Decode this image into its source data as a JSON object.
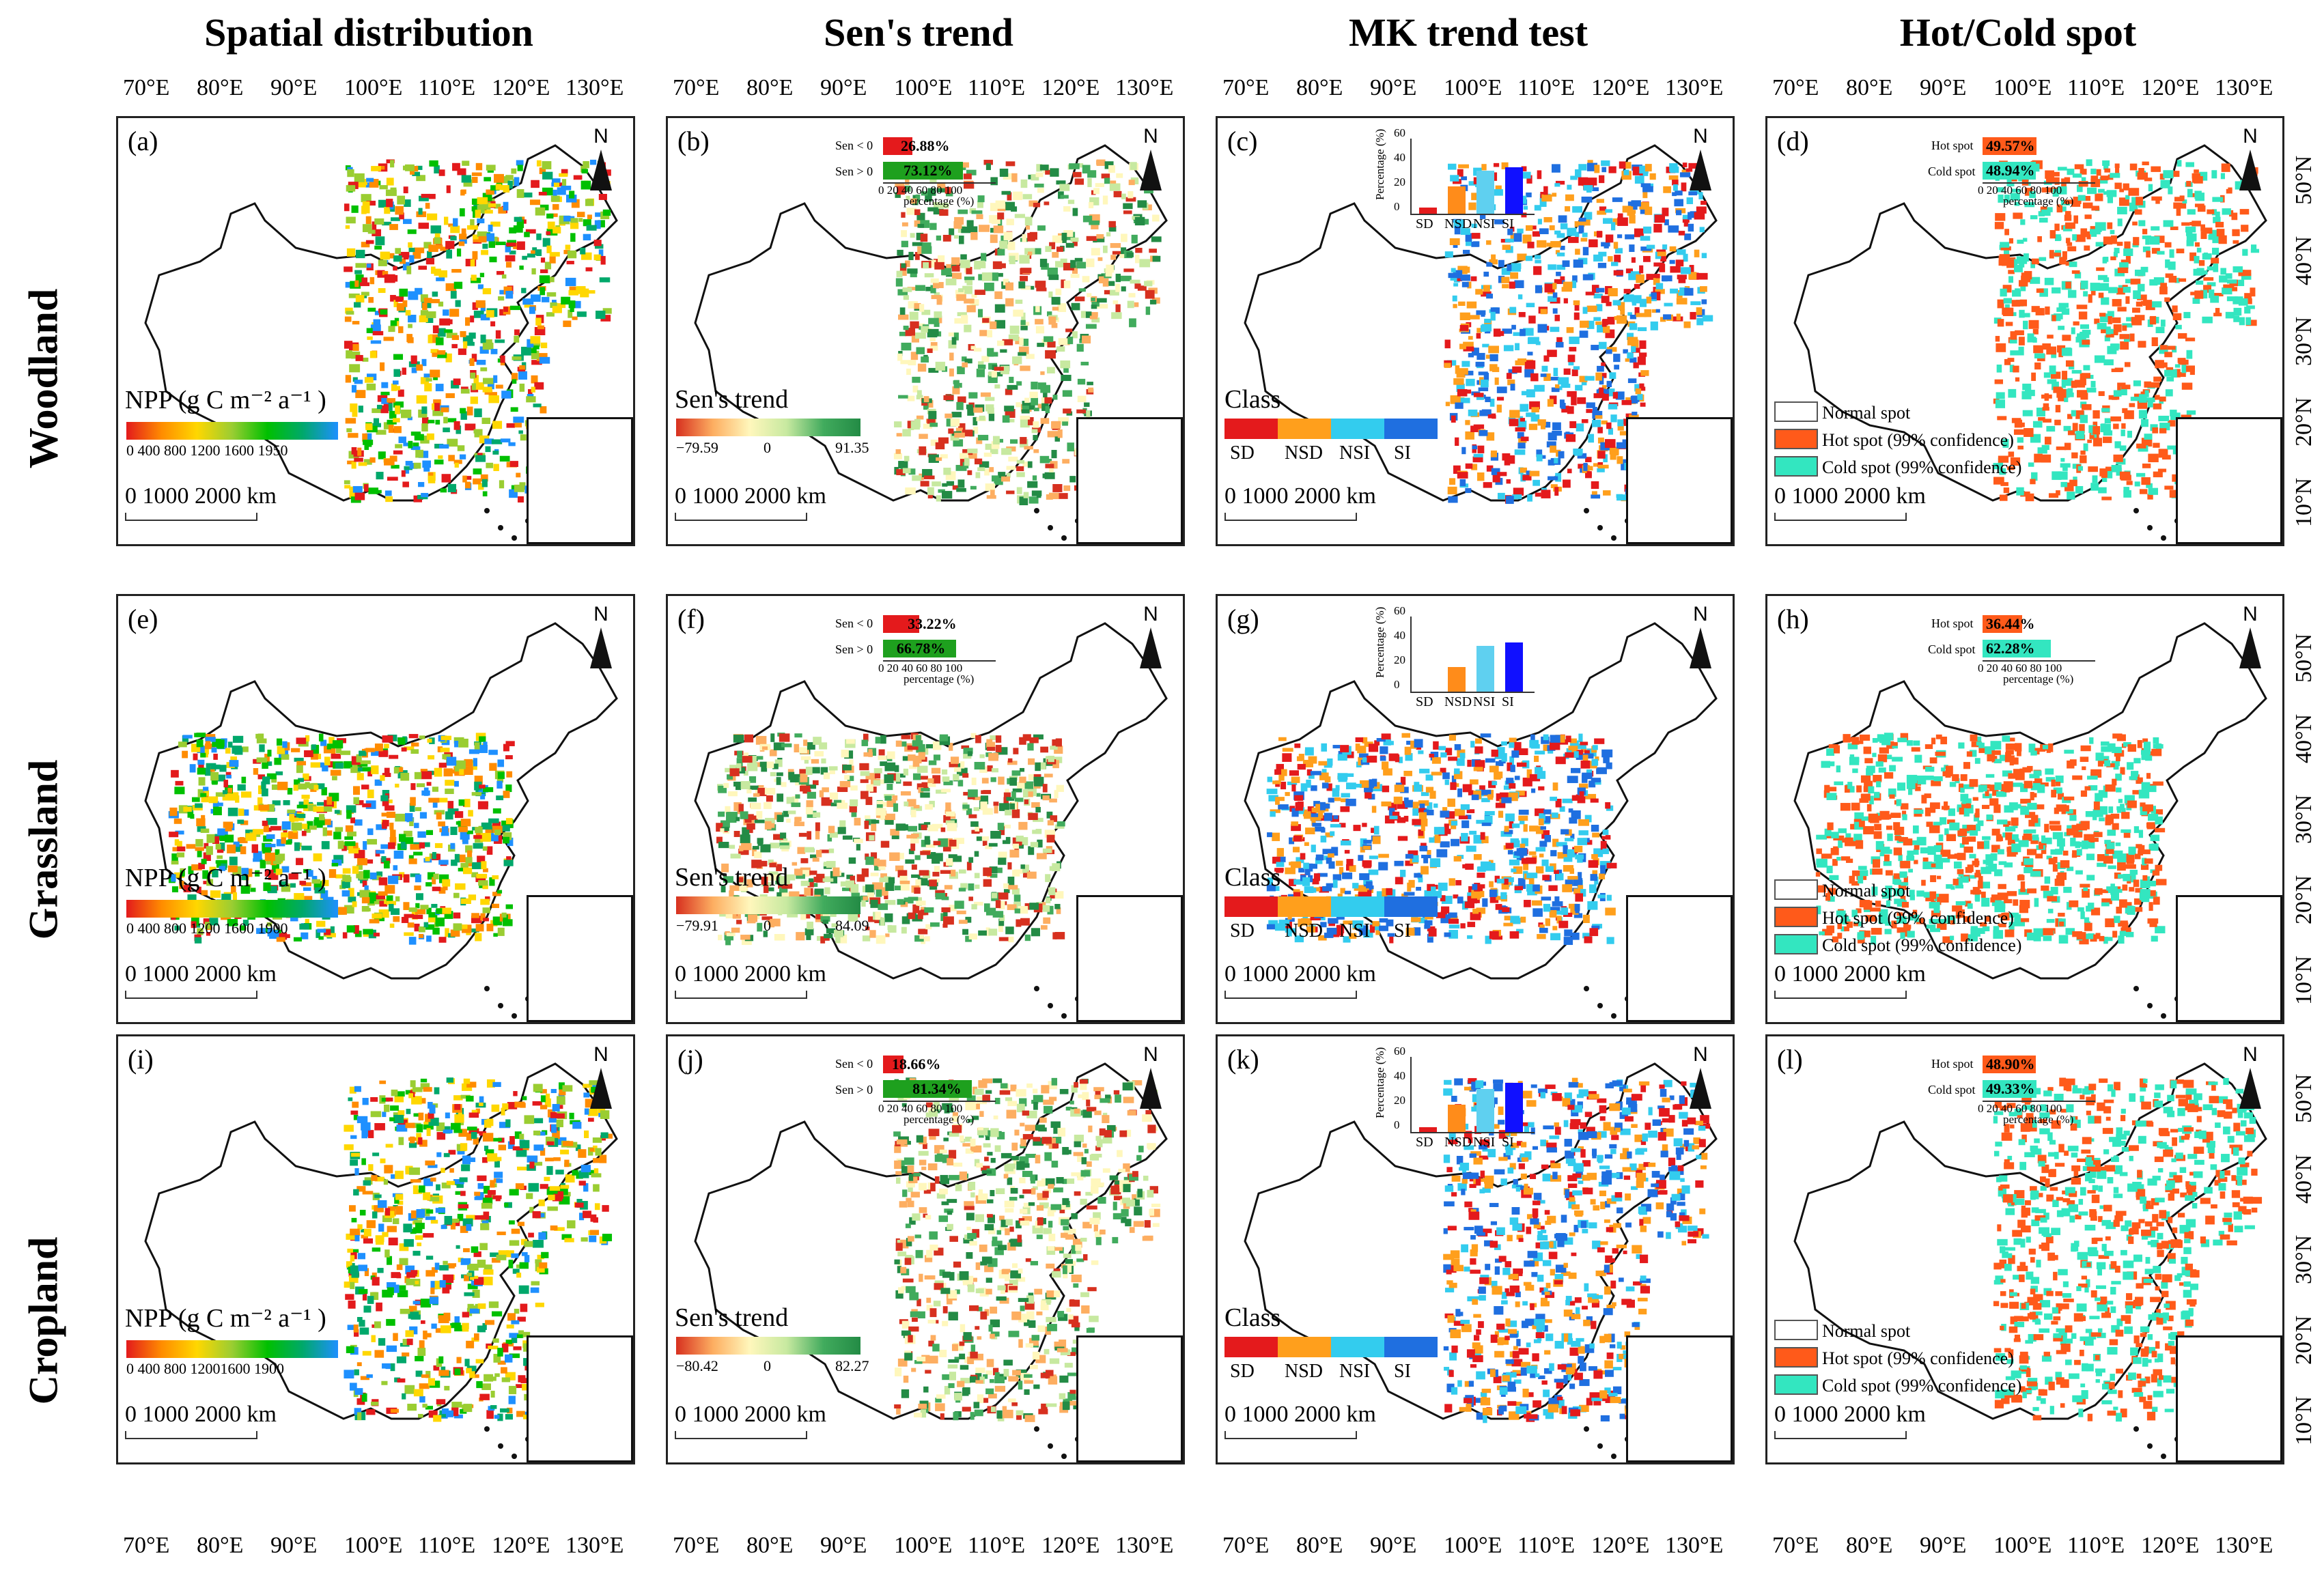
{
  "columns": [
    "Spatial distribution",
    "Sen's trend",
    "MK trend test",
    "Hot/Cold spot"
  ],
  "rows": [
    "Woodland",
    "Grassland",
    "Cropland"
  ],
  "lon_ticks": [
    "70°E",
    "80°E",
    "90°E",
    "100°E",
    "110°E",
    "120°E",
    "130°E"
  ],
  "lat_ticks": [
    "50°N",
    "40°N",
    "30°N",
    "20°N",
    "10°N"
  ],
  "north_label": "N",
  "scale": {
    "zero": "0",
    "mid": "1000",
    "end": "2000",
    "unit": "km"
  },
  "npp_title": "NPP (g C m⁻² a⁻¹ )",
  "sens_title": "Sen's trend",
  "class_title": "Class",
  "class_labels": [
    "SD",
    "NSD",
    "NSI",
    "SI"
  ],
  "hc_legend": [
    "Normal spot",
    "Hot spot (99% confidence)",
    "Cold spot (99% confidence)"
  ],
  "mini_axis": {
    "x_ticks": "0  20 40 60 80 100",
    "x_label": "percentage (%)",
    "y_label": "Percentage (%)",
    "y_ticks": [
      "60",
      "40",
      "20",
      "0"
    ],
    "sen_neg": "Sen < 0",
    "sen_pos": "Sen > 0",
    "hot": "Hot spot",
    "cold": "Cold spot"
  },
  "colors": {
    "npp": [
      "#e31a1c",
      "#ff8c00",
      "#ffd700",
      "#9acd32",
      "#00c000",
      "#00a86b",
      "#1e90ff"
    ],
    "sens": [
      "#d7301f",
      "#fdae61",
      "#fff7bc",
      "#c7e9a0",
      "#41ab5d",
      "#238b45"
    ],
    "class": [
      "#e41a1c",
      "#ff9f1c",
      "#33ccee",
      "#1f6fe0"
    ],
    "hot": "#ff5a1a",
    "cold": "#33e6c0",
    "mk_bars": [
      "#e41a1c",
      "#ff8c1a",
      "#5fd0f0",
      "#1010ff"
    ],
    "sen_neg_bar": "#e41a1c",
    "sen_pos_bar": "#1ea01e"
  },
  "panels": [
    {
      "label": "(a)",
      "type": "npp",
      "cb_ticks": "0   400   800  1200  1600  1950"
    },
    {
      "label": "(b)",
      "type": "sens",
      "cb_min": "−79.59",
      "cb_mid": "0",
      "cb_max": "91.35",
      "neg_pct": "26.88%",
      "pos_pct": "73.12%",
      "neg": 26.88,
      "pos": 73.12
    },
    {
      "label": "(c)",
      "type": "mk",
      "mk": [
        5,
        22,
        35,
        38
      ]
    },
    {
      "label": "(d)",
      "type": "hc",
      "hot_pct": "49.57%",
      "cold_pct": "48.94%",
      "hot": 49.57,
      "cold": 48.94
    },
    {
      "label": "(e)",
      "type": "npp",
      "cb_ticks": "0   400   800  1200  1600  1900"
    },
    {
      "label": "(f)",
      "type": "sens",
      "cb_min": "−79.91",
      "cb_mid": "0",
      "cb_max": "84.09",
      "neg_pct": "33.22%",
      "pos_pct": "66.78%",
      "neg": 33.22,
      "pos": 66.78
    },
    {
      "label": "(g)",
      "type": "mk",
      "mk": [
        0,
        20,
        37,
        40
      ]
    },
    {
      "label": "(h)",
      "type": "hc",
      "hot_pct": "36.44%",
      "cold_pct": "62.28%",
      "hot": 36.44,
      "cold": 62.28
    },
    {
      "label": "(i)",
      "type": "npp",
      "cb_ticks": "0   400   800  12001600  1900"
    },
    {
      "label": "(j)",
      "type": "sens",
      "cb_min": "−80.42",
      "cb_mid": "0",
      "cb_max": "82.27",
      "neg_pct": "18.66%",
      "pos_pct": "81.34%",
      "neg": 18.66,
      "pos": 81.34
    },
    {
      "label": "(k)",
      "type": "mk",
      "mk": [
        4,
        22,
        35,
        40
      ]
    },
    {
      "label": "(l)",
      "type": "hc",
      "hot_pct": "48.90%",
      "cold_pct": "49.33%",
      "hot": 48.9,
      "cold": 49.33
    }
  ]
}
